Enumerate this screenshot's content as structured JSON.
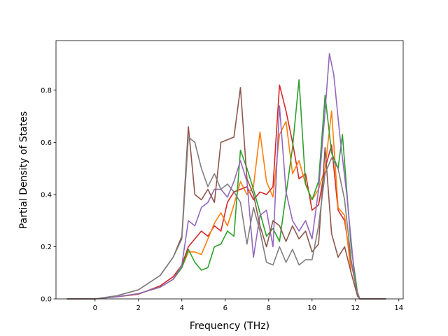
{
  "chart_data": {
    "type": "line",
    "title": "",
    "xlabel": "Frequency (THz)",
    "ylabel": "Partial Density of States",
    "xlim": [
      -1.8,
      14.2
    ],
    "ylim": [
      0,
      0.99
    ],
    "xticks": [
      0,
      2,
      4,
      6,
      8,
      10,
      12,
      14
    ],
    "yticks": [
      0.0,
      0.2,
      0.4,
      0.6,
      0.8
    ],
    "ytick_labels": [
      "0.0",
      "0.2",
      "0.4",
      "0.6",
      "0.8"
    ],
    "grid": false,
    "legend": "none",
    "series": [
      {
        "color": "#d62728",
        "points": [
          [
            -1.3,
            0
          ],
          [
            0,
            0
          ],
          [
            1,
            0.008
          ],
          [
            2,
            0.018
          ],
          [
            3,
            0.05
          ],
          [
            3.6,
            0.085
          ],
          [
            4,
            0.13
          ],
          [
            4.3,
            0.2
          ],
          [
            4.6,
            0.23
          ],
          [
            4.9,
            0.26
          ],
          [
            5.2,
            0.24
          ],
          [
            5.5,
            0.28
          ],
          [
            5.8,
            0.26
          ],
          [
            6.1,
            0.37
          ],
          [
            6.4,
            0.41
          ],
          [
            6.7,
            0.42
          ],
          [
            7,
            0.43
          ],
          [
            7.3,
            0.38
          ],
          [
            7.6,
            0.41
          ],
          [
            7.9,
            0.4
          ],
          [
            8.2,
            0.43
          ],
          [
            8.5,
            0.82
          ],
          [
            8.8,
            0.72
          ],
          [
            9.1,
            0.6
          ],
          [
            9.4,
            0.46
          ],
          [
            9.7,
            0.48
          ],
          [
            10,
            0.34
          ],
          [
            10.3,
            0.36
          ],
          [
            10.6,
            0.5
          ],
          [
            10.9,
            0.59
          ],
          [
            11.2,
            0.34
          ],
          [
            11.5,
            0.3
          ],
          [
            11.8,
            0.14
          ],
          [
            12.1,
            0.02
          ],
          [
            12.2,
            0
          ],
          [
            13.4,
            0
          ]
        ]
      },
      {
        "color": "#ff7f0e",
        "points": [
          [
            -1.3,
            0
          ],
          [
            0,
            0
          ],
          [
            1,
            0.008
          ],
          [
            2,
            0.02
          ],
          [
            3,
            0.045
          ],
          [
            3.6,
            0.075
          ],
          [
            4,
            0.12
          ],
          [
            4.3,
            0.18
          ],
          [
            4.6,
            0.18
          ],
          [
            4.9,
            0.17
          ],
          [
            5.2,
            0.23
          ],
          [
            5.5,
            0.29
          ],
          [
            5.8,
            0.33
          ],
          [
            6.1,
            0.28
          ],
          [
            6.4,
            0.36
          ],
          [
            6.7,
            0.45
          ],
          [
            7,
            0.4
          ],
          [
            7.3,
            0.43
          ],
          [
            7.6,
            0.64
          ],
          [
            7.9,
            0.45
          ],
          [
            8.2,
            0.39
          ],
          [
            8.5,
            0.63
          ],
          [
            8.8,
            0.68
          ],
          [
            9.1,
            0.48
          ],
          [
            9.4,
            0.53
          ],
          [
            9.7,
            0.44
          ],
          [
            10,
            0.38
          ],
          [
            10.3,
            0.42
          ],
          [
            10.6,
            0.5
          ],
          [
            10.9,
            0.72
          ],
          [
            11.2,
            0.35
          ],
          [
            11.5,
            0.32
          ],
          [
            11.8,
            0.1
          ],
          [
            12.1,
            0.01
          ],
          [
            12.2,
            0
          ],
          [
            13.4,
            0
          ]
        ]
      },
      {
        "color": "#2ca02c",
        "points": [
          [
            -1.3,
            0
          ],
          [
            0,
            0
          ],
          [
            1,
            0.008
          ],
          [
            2,
            0.02
          ],
          [
            3,
            0.045
          ],
          [
            3.6,
            0.075
          ],
          [
            4,
            0.12
          ],
          [
            4.3,
            0.19
          ],
          [
            4.6,
            0.14
          ],
          [
            4.9,
            0.11
          ],
          [
            5.2,
            0.12
          ],
          [
            5.5,
            0.2
          ],
          [
            5.8,
            0.21
          ],
          [
            6.1,
            0.26
          ],
          [
            6.4,
            0.24
          ],
          [
            6.7,
            0.57
          ],
          [
            7,
            0.5
          ],
          [
            7.3,
            0.42
          ],
          [
            7.6,
            0.33
          ],
          [
            7.9,
            0.24
          ],
          [
            8.2,
            0.27
          ],
          [
            8.5,
            0.22
          ],
          [
            8.8,
            0.4
          ],
          [
            9.1,
            0.58
          ],
          [
            9.4,
            0.84
          ],
          [
            9.7,
            0.44
          ],
          [
            10,
            0.38
          ],
          [
            10.3,
            0.45
          ],
          [
            10.6,
            0.78
          ],
          [
            10.9,
            0.56
          ],
          [
            11.2,
            0.5
          ],
          [
            11.4,
            0.63
          ],
          [
            11.8,
            0.2
          ],
          [
            12.1,
            0.02
          ],
          [
            12.2,
            0
          ],
          [
            13.4,
            0
          ]
        ]
      },
      {
        "color": "#9467bd",
        "points": [
          [
            -1.3,
            0
          ],
          [
            0,
            0
          ],
          [
            1,
            0.008
          ],
          [
            2,
            0.02
          ],
          [
            3,
            0.045
          ],
          [
            3.6,
            0.075
          ],
          [
            4,
            0.13
          ],
          [
            4.3,
            0.3
          ],
          [
            4.6,
            0.28
          ],
          [
            4.9,
            0.35
          ],
          [
            5.2,
            0.37
          ],
          [
            5.5,
            0.42
          ],
          [
            5.8,
            0.42
          ],
          [
            6.1,
            0.39
          ],
          [
            6.4,
            0.45
          ],
          [
            6.7,
            0.53
          ],
          [
            7,
            0.45
          ],
          [
            7.3,
            0.16
          ],
          [
            7.6,
            0.32
          ],
          [
            7.9,
            0.34
          ],
          [
            8.2,
            0.2
          ],
          [
            8.5,
            0.74
          ],
          [
            8.8,
            0.41
          ],
          [
            9.1,
            0.3
          ],
          [
            9.4,
            0.26
          ],
          [
            9.7,
            0.3
          ],
          [
            10,
            0.23
          ],
          [
            10.3,
            0.42
          ],
          [
            10.6,
            0.72
          ],
          [
            10.8,
            0.94
          ],
          [
            11,
            0.86
          ],
          [
            11.3,
            0.61
          ],
          [
            11.6,
            0.4
          ],
          [
            12,
            0.05
          ],
          [
            12.2,
            0
          ],
          [
            13.4,
            0
          ]
        ]
      },
      {
        "color": "#8c564b",
        "points": [
          [
            -1.3,
            0
          ],
          [
            0,
            0
          ],
          [
            1,
            0.012
          ],
          [
            2,
            0.035
          ],
          [
            3,
            0.09
          ],
          [
            3.6,
            0.16
          ],
          [
            4,
            0.24
          ],
          [
            4.3,
            0.66
          ],
          [
            4.6,
            0.4
          ],
          [
            4.9,
            0.38
          ],
          [
            5.2,
            0.42
          ],
          [
            5.5,
            0.37
          ],
          [
            5.8,
            0.6
          ],
          [
            6.1,
            0.61
          ],
          [
            6.4,
            0.62
          ],
          [
            6.7,
            0.81
          ],
          [
            7,
            0.46
          ],
          [
            7.3,
            0.4
          ],
          [
            7.6,
            0.28
          ],
          [
            7.9,
            0.2
          ],
          [
            8.2,
            0.3
          ],
          [
            8.5,
            0.28
          ],
          [
            8.8,
            0.22
          ],
          [
            9.1,
            0.28
          ],
          [
            9.4,
            0.23
          ],
          [
            9.7,
            0.26
          ],
          [
            10,
            0.18
          ],
          [
            10.3,
            0.21
          ],
          [
            10.6,
            0.58
          ],
          [
            10.9,
            0.25
          ],
          [
            11.2,
            0.16
          ],
          [
            11.5,
            0.2
          ],
          [
            11.8,
            0.1
          ],
          [
            12.1,
            0.01
          ],
          [
            12.2,
            0
          ],
          [
            13.4,
            0
          ]
        ]
      },
      {
        "color": "#7f7f7f",
        "points": [
          [
            -1.3,
            0
          ],
          [
            0,
            0
          ],
          [
            1,
            0.012
          ],
          [
            2,
            0.035
          ],
          [
            3,
            0.09
          ],
          [
            3.6,
            0.16
          ],
          [
            4,
            0.23
          ],
          [
            4.3,
            0.62
          ],
          [
            4.6,
            0.6
          ],
          [
            4.9,
            0.5
          ],
          [
            5.2,
            0.43
          ],
          [
            5.5,
            0.48
          ],
          [
            5.8,
            0.42
          ],
          [
            6.1,
            0.44
          ],
          [
            6.4,
            0.41
          ],
          [
            6.7,
            0.37
          ],
          [
            7,
            0.21
          ],
          [
            7.3,
            0.35
          ],
          [
            7.6,
            0.26
          ],
          [
            7.9,
            0.14
          ],
          [
            8.2,
            0.13
          ],
          [
            8.5,
            0.2
          ],
          [
            8.8,
            0.14
          ],
          [
            9.1,
            0.19
          ],
          [
            9.4,
            0.13
          ],
          [
            9.7,
            0.15
          ],
          [
            10,
            0.15
          ],
          [
            10.3,
            0.28
          ],
          [
            10.6,
            0.48
          ],
          [
            10.9,
            0.54
          ],
          [
            11.2,
            0.5
          ],
          [
            11.5,
            0.38
          ],
          [
            11.8,
            0.15
          ],
          [
            12.1,
            0.02
          ],
          [
            12.2,
            0
          ],
          [
            13.4,
            0
          ]
        ]
      }
    ]
  }
}
